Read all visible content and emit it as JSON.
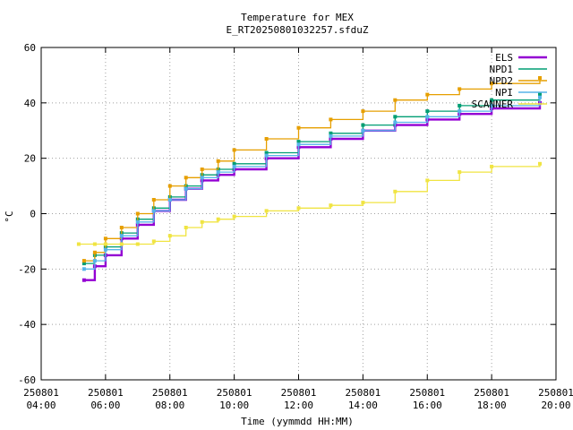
{
  "chart_data": {
    "type": "line",
    "title": "Temperature for MEX",
    "subtitle": "E_RT20250801032257.sfduZ",
    "xlabel": "Time (yymmdd HH:MM)",
    "ylabel": "°C",
    "xlim": [
      "250801 04:00",
      "250801 20:00"
    ],
    "ylim": [
      -60,
      60
    ],
    "grid": true,
    "legend_position": "top-right",
    "x_ticks": [
      {
        "date": "250801",
        "time": "04:00"
      },
      {
        "date": "250801",
        "time": "06:00"
      },
      {
        "date": "250801",
        "time": "08:00"
      },
      {
        "date": "250801",
        "time": "10:00"
      },
      {
        "date": "250801",
        "time": "12:00"
      },
      {
        "date": "250801",
        "time": "14:00"
      },
      {
        "date": "250801",
        "time": "16:00"
      },
      {
        "date": "250801",
        "time": "18:00"
      },
      {
        "date": "250801",
        "time": "20:00"
      }
    ],
    "y_ticks": [
      -60,
      -40,
      -20,
      0,
      20,
      40,
      60
    ],
    "series": [
      {
        "name": "ELS",
        "color": "#9400d3",
        "points": [
          [
            "250801 05:20",
            -24
          ],
          [
            "250801 05:40",
            -19
          ],
          [
            "250801 06:00",
            -15
          ],
          [
            "250801 06:30",
            -9
          ],
          [
            "250801 07:00",
            -4
          ],
          [
            "250801 07:30",
            1
          ],
          [
            "250801 08:00",
            5
          ],
          [
            "250801 08:30",
            9
          ],
          [
            "250801 09:00",
            12
          ],
          [
            "250801 09:30",
            14
          ],
          [
            "250801 10:00",
            16
          ],
          [
            "250801 11:00",
            20
          ],
          [
            "250801 12:00",
            24
          ],
          [
            "250801 13:00",
            27
          ],
          [
            "250801 14:00",
            30
          ],
          [
            "250801 15:00",
            32
          ],
          [
            "250801 16:00",
            34
          ],
          [
            "250801 17:00",
            36
          ],
          [
            "250801 18:00",
            38
          ],
          [
            "250801 19:30",
            40
          ]
        ]
      },
      {
        "name": "NPD1",
        "color": "#009e73",
        "points": [
          [
            "250801 05:20",
            -18
          ],
          [
            "250801 05:40",
            -15
          ],
          [
            "250801 06:00",
            -12
          ],
          [
            "250801 06:30",
            -7
          ],
          [
            "250801 07:00",
            -2
          ],
          [
            "250801 07:30",
            2
          ],
          [
            "250801 08:00",
            6
          ],
          [
            "250801 08:30",
            10
          ],
          [
            "250801 09:00",
            14
          ],
          [
            "250801 09:30",
            16
          ],
          [
            "250801 10:00",
            18
          ],
          [
            "250801 11:00",
            22
          ],
          [
            "250801 12:00",
            26
          ],
          [
            "250801 13:00",
            29
          ],
          [
            "250801 14:00",
            32
          ],
          [
            "250801 15:00",
            35
          ],
          [
            "250801 16:00",
            37
          ],
          [
            "250801 17:00",
            39
          ],
          [
            "250801 18:00",
            41
          ],
          [
            "250801 19:30",
            43
          ]
        ]
      },
      {
        "name": "NPD2",
        "color": "#e69f00",
        "points": [
          [
            "250801 05:20",
            -17
          ],
          [
            "250801 05:40",
            -14
          ],
          [
            "250801 06:00",
            -9
          ],
          [
            "250801 06:30",
            -5
          ],
          [
            "250801 07:00",
            0
          ],
          [
            "250801 07:30",
            5
          ],
          [
            "250801 08:00",
            10
          ],
          [
            "250801 08:30",
            13
          ],
          [
            "250801 09:00",
            16
          ],
          [
            "250801 09:30",
            19
          ],
          [
            "250801 10:00",
            23
          ],
          [
            "250801 11:00",
            27
          ],
          [
            "250801 12:00",
            31
          ],
          [
            "250801 13:00",
            34
          ],
          [
            "250801 14:00",
            37
          ],
          [
            "250801 15:00",
            41
          ],
          [
            "250801 16:00",
            43
          ],
          [
            "250801 17:00",
            45
          ],
          [
            "250801 18:00",
            47
          ],
          [
            "250801 19:30",
            49
          ]
        ]
      },
      {
        "name": "NPI",
        "color": "#56b4e9",
        "points": [
          [
            "250801 05:20",
            -20
          ],
          [
            "250801 05:40",
            -17
          ],
          [
            "250801 06:00",
            -13
          ],
          [
            "250801 06:30",
            -8
          ],
          [
            "250801 07:00",
            -3
          ],
          [
            "250801 07:30",
            1
          ],
          [
            "250801 08:00",
            5
          ],
          [
            "250801 08:30",
            9
          ],
          [
            "250801 09:00",
            13
          ],
          [
            "250801 09:30",
            15
          ],
          [
            "250801 10:00",
            17
          ],
          [
            "250801 11:00",
            21
          ],
          [
            "250801 12:00",
            25
          ],
          [
            "250801 13:00",
            28
          ],
          [
            "250801 14:00",
            30
          ],
          [
            "250801 15:00",
            33
          ],
          [
            "250801 16:00",
            35
          ],
          [
            "250801 17:00",
            37
          ],
          [
            "250801 18:00",
            39
          ],
          [
            "250801 19:30",
            42
          ]
        ]
      },
      {
        "name": "SCANNER",
        "color": "#f0e442",
        "points": [
          [
            "250801 05:10",
            -11
          ],
          [
            "250801 05:40",
            -11
          ],
          [
            "250801 06:00",
            -11
          ],
          [
            "250801 06:30",
            -11
          ],
          [
            "250801 07:00",
            -11
          ],
          [
            "250801 07:30",
            -10
          ],
          [
            "250801 08:00",
            -8
          ],
          [
            "250801 08:30",
            -5
          ],
          [
            "250801 09:00",
            -3
          ],
          [
            "250801 09:30",
            -2
          ],
          [
            "250801 10:00",
            -1
          ],
          [
            "250801 11:00",
            1
          ],
          [
            "250801 12:00",
            2
          ],
          [
            "250801 13:00",
            3
          ],
          [
            "250801 14:00",
            4
          ],
          [
            "250801 15:00",
            8
          ],
          [
            "250801 16:00",
            12
          ],
          [
            "250801 17:00",
            15
          ],
          [
            "250801 18:00",
            17
          ],
          [
            "250801 19:30",
            18
          ]
        ]
      }
    ]
  }
}
